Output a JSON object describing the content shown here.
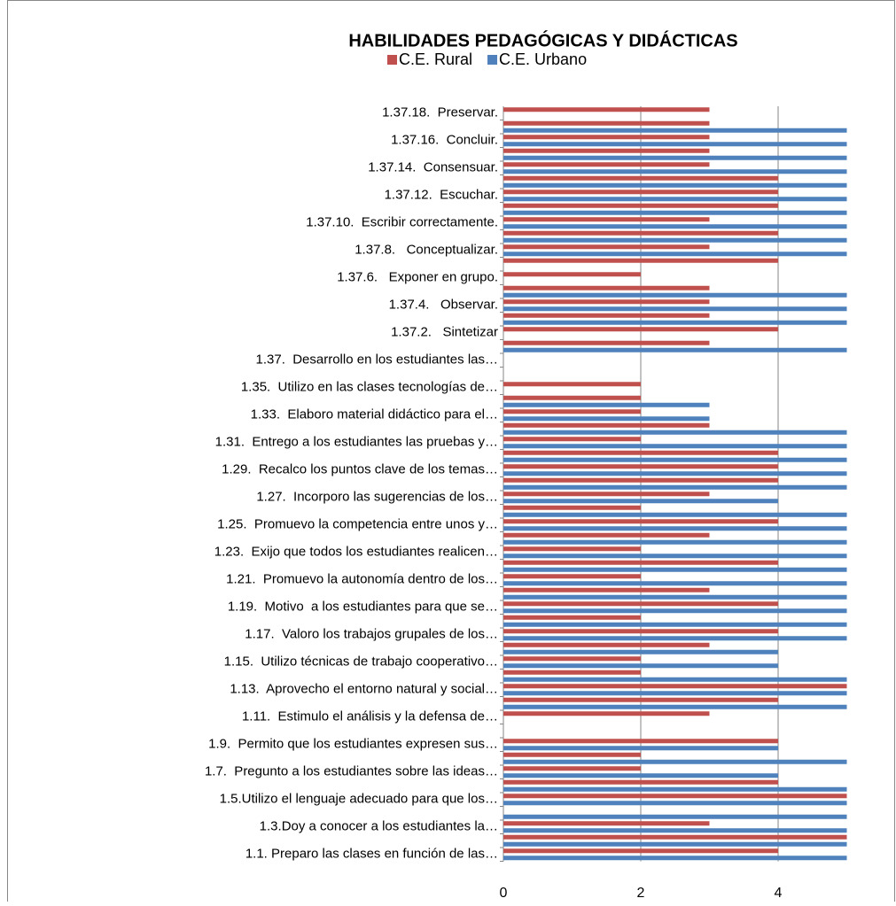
{
  "chart_data": {
    "type": "hbar",
    "title": "HABILIDADES PEDAGÓGICAS Y DIDÁCTICAS",
    "categories": [
      "1.1. Preparo las clases en función de las…",
      null,
      "1.3.Doy a conocer a los estudiantes la…",
      null,
      "1.5.Utilizo el lenguaje adecuado para que los…",
      null,
      "1.7.  Pregunto a los estudiantes sobre las ideas…",
      null,
      "1.9.  Permito que los estudiantes expresen sus…",
      null,
      "1.11.  Estimulo el análisis y la defensa de…",
      null,
      "1.13.  Aprovecho el entorno natural y social…",
      null,
      "1.15.  Utilizo técnicas de trabajo cooperativo…",
      null,
      "1.17.  Valoro los trabajos grupales de los…",
      null,
      "1.19.  Motivo  a los estudiantes para que se…",
      null,
      "1.21.  Promuevo la autonomía dentro de los…",
      null,
      "1.23.  Exijo que todos los estudiantes realicen…",
      null,
      "1.25.  Promuevo la competencia entre unos y…",
      null,
      "1.27.  Incorporo las sugerencias de los…",
      null,
      "1.29.  Recalco los puntos clave de los temas…",
      null,
      "1.31.  Entrego a los estudiantes las pruebas y…",
      null,
      "1.33.  Elaboro material didáctico para el…",
      null,
      "1.35.  Utilizo en las clases tecnologías de…",
      null,
      "1.37.  Desarrollo en los estudiantes las…",
      null,
      "1.37.2.   Sintetizar",
      null,
      "1.37.4.   Observar.",
      null,
      "1.37.6.   Exponer en grupo.",
      null,
      "1.37.8.   Conceptualizar.",
      null,
      "1.37.10.  Escribir correctamente.",
      null,
      "1.37.12.  Escuchar.",
      null,
      "1.37.14.  Consensuar.",
      null,
      "1.37.16.  Concluir.",
      null,
      "1.37.18.  Preservar."
    ],
    "series": [
      {
        "name": "C.E. Rural",
        "color": "#c0504d",
        "values": [
          4,
          5,
          3,
          0,
          5,
          4,
          2,
          2,
          4,
          0,
          3,
          4,
          5,
          2,
          2,
          3,
          4,
          2,
          4,
          3,
          2,
          4,
          2,
          3,
          4,
          2,
          3,
          4,
          4,
          4,
          2,
          3,
          2,
          2,
          2,
          0,
          0,
          3,
          4,
          3,
          3,
          3,
          2,
          4,
          3,
          4,
          3,
          4,
          4,
          4,
          3,
          3,
          3,
          3,
          3
        ]
      },
      {
        "name": "C.E. Urbano",
        "color": "#4f81bd",
        "values": [
          5,
          5,
          5,
          5,
          5,
          5,
          4,
          5,
          4,
          0,
          0,
          5,
          5,
          5,
          4,
          4,
          5,
          5,
          5,
          5,
          5,
          5,
          5,
          5,
          5,
          5,
          4,
          5,
          5,
          5,
          5,
          5,
          3,
          3,
          0,
          0,
          0,
          5,
          0,
          5,
          5,
          5,
          0,
          0,
          5,
          5,
          5,
          5,
          5,
          5,
          5,
          5,
          5,
          5,
          0
        ]
      }
    ],
    "xlim": [
      0,
      5
    ],
    "xticks": [
      0,
      2,
      4
    ],
    "grid": true,
    "legend": "top"
  }
}
